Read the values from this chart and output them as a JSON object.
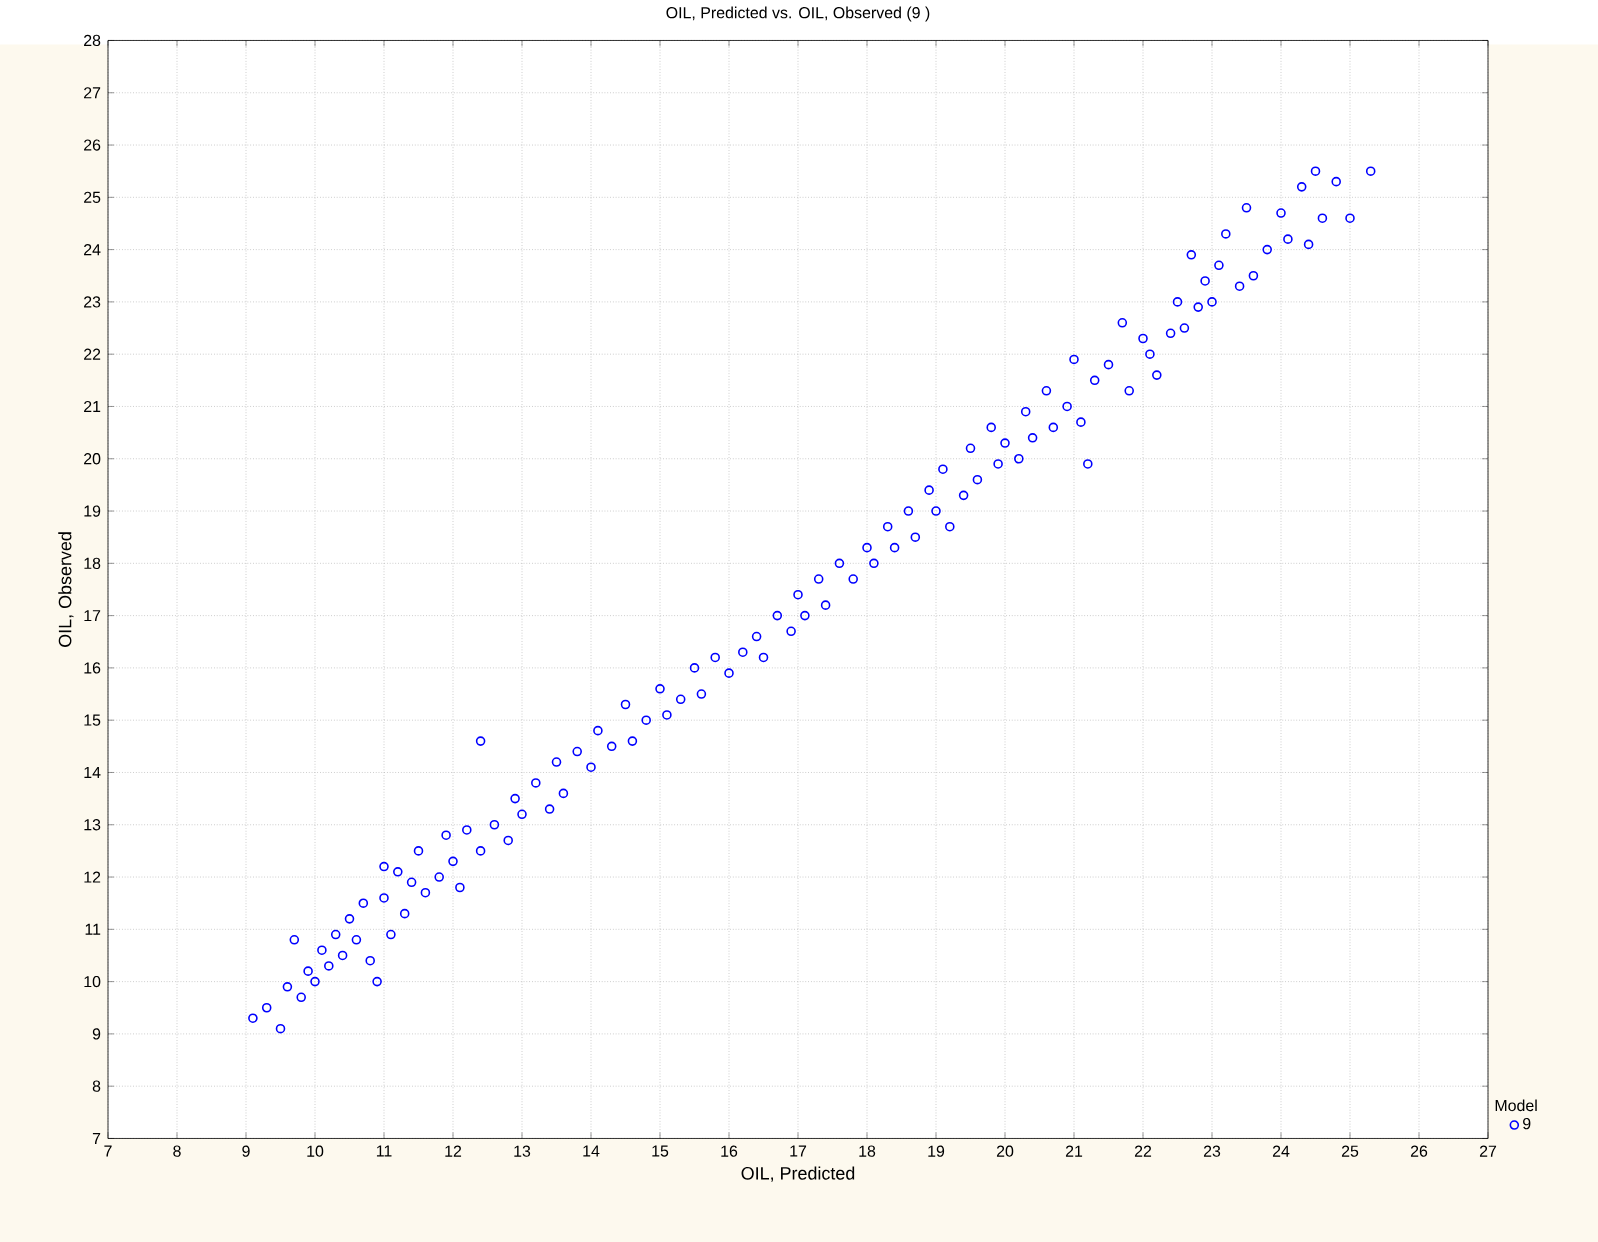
{
  "chart_data": {
    "type": "scatter",
    "title": "OIL, Predicted vs.  OIL, Observed (9 )",
    "xlabel": "OIL, Predicted",
    "ylabel": "OIL, Observed",
    "legend_title": "Model",
    "legend": "bottom right",
    "grid": true,
    "marker": "circle",
    "xlim": [
      7,
      27
    ],
    "ylim": [
      7,
      28
    ],
    "xticks": [
      7,
      8,
      9,
      10,
      11,
      12,
      13,
      14,
      15,
      16,
      17,
      18,
      19,
      20,
      21,
      22,
      23,
      24,
      25,
      26,
      27
    ],
    "yticks": [
      7,
      8,
      9,
      10,
      11,
      12,
      13,
      14,
      15,
      16,
      17,
      18,
      19,
      20,
      21,
      22,
      23,
      24,
      25,
      26,
      27,
      28
    ],
    "series": [
      {
        "name": "9",
        "color": "#0000ff",
        "x": [
          9.1,
          9.3,
          9.5,
          9.6,
          9.7,
          9.8,
          9.9,
          10.0,
          10.1,
          10.2,
          10.3,
          10.4,
          10.5,
          10.6,
          10.7,
          10.8,
          10.9,
          11.0,
          11.0,
          11.1,
          11.2,
          11.3,
          11.4,
          11.5,
          11.6,
          11.8,
          11.9,
          12.0,
          12.1,
          12.2,
          12.4,
          12.4,
          12.6,
          12.8,
          12.9,
          13.0,
          13.2,
          13.4,
          13.5,
          13.6,
          13.8,
          14.0,
          14.1,
          14.3,
          14.5,
          14.6,
          14.8,
          15.0,
          15.1,
          15.3,
          15.5,
          15.6,
          15.8,
          16.0,
          16.2,
          16.4,
          16.5,
          16.7,
          16.9,
          17.0,
          17.1,
          17.3,
          17.4,
          17.6,
          17.8,
          18.0,
          18.1,
          18.3,
          18.4,
          18.6,
          18.7,
          18.9,
          19.0,
          19.1,
          19.2,
          19.4,
          19.5,
          19.6,
          19.8,
          19.9,
          20.0,
          20.2,
          20.3,
          20.4,
          20.6,
          20.7,
          20.9,
          21.0,
          21.1,
          21.2,
          21.3,
          21.5,
          21.7,
          21.8,
          22.0,
          22.1,
          22.2,
          22.4,
          22.5,
          22.6,
          22.7,
          22.8,
          22.9,
          23.0,
          23.1,
          23.2,
          23.4,
          23.5,
          23.6,
          23.8,
          24.0,
          24.1,
          24.3,
          24.4,
          24.5,
          24.6,
          24.8,
          25.0,
          25.3
        ],
        "values": [
          9.3,
          9.5,
          9.1,
          9.9,
          10.8,
          9.7,
          10.2,
          10.0,
          10.6,
          10.3,
          10.9,
          10.5,
          11.2,
          10.8,
          11.5,
          10.4,
          10.0,
          11.6,
          12.2,
          10.9,
          12.1,
          11.3,
          11.9,
          12.5,
          11.7,
          12.0,
          12.8,
          12.3,
          11.8,
          12.9,
          12.5,
          14.6,
          13.0,
          12.7,
          13.5,
          13.2,
          13.8,
          13.3,
          14.2,
          13.6,
          14.4,
          14.1,
          14.8,
          14.5,
          15.3,
          14.6,
          15.0,
          15.6,
          15.1,
          15.4,
          16.0,
          15.5,
          16.2,
          15.9,
          16.3,
          16.6,
          16.2,
          17.0,
          16.7,
          17.4,
          17.0,
          17.7,
          17.2,
          18.0,
          17.7,
          18.3,
          18.0,
          18.7,
          18.3,
          19.0,
          18.5,
          19.4,
          19.0,
          19.8,
          18.7,
          19.3,
          20.2,
          19.6,
          20.6,
          19.9,
          20.3,
          20.0,
          20.9,
          20.4,
          21.3,
          20.6,
          21.0,
          21.9,
          20.7,
          19.9,
          21.5,
          21.8,
          22.6,
          21.3,
          22.3,
          22.0,
          21.6,
          22.4,
          23.0,
          22.5,
          23.9,
          22.9,
          23.4,
          23.0,
          23.7,
          24.3,
          23.3,
          24.8,
          23.5,
          24.0,
          24.7,
          24.2,
          25.2,
          24.1,
          25.5,
          24.6,
          25.3,
          24.6,
          25.5
        ]
      }
    ]
  }
}
